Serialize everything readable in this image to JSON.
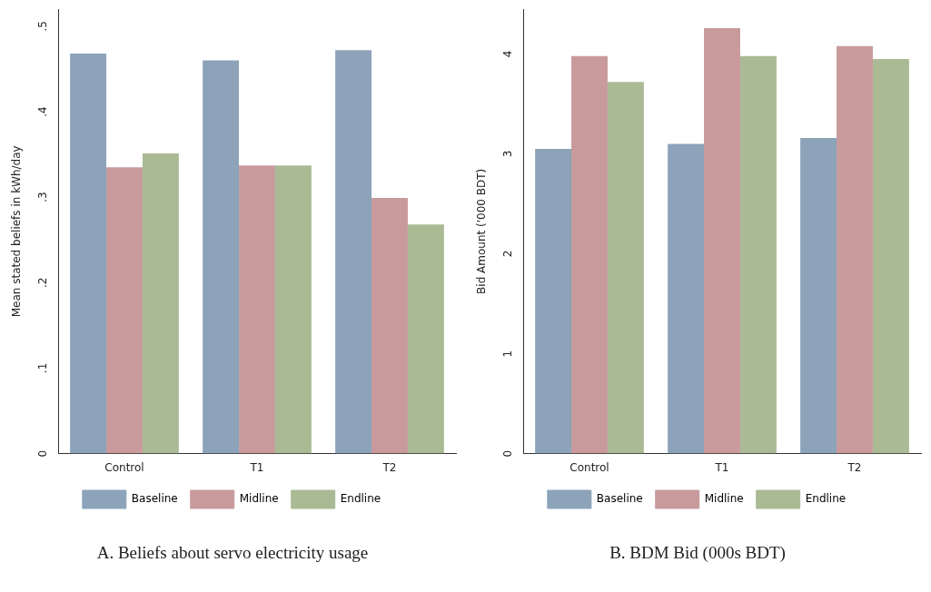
{
  "chart_data": [
    {
      "type": "bar",
      "title": "A. Beliefs about servo electricity usage",
      "ylabel": "Mean stated beliefs in kWh/day",
      "categories": [
        "Control",
        "T1",
        "T2"
      ],
      "series": [
        {
          "name": "Baseline",
          "color": "#8ca3ba",
          "values": [
            0.468,
            0.46,
            0.472
          ]
        },
        {
          "name": "Midline",
          "color": "#c89a9c",
          "values": [
            0.335,
            0.337,
            0.299
          ]
        },
        {
          "name": "Endline",
          "color": "#a9ba94",
          "values": [
            0.351,
            0.337,
            0.268
          ]
        }
      ],
      "ylim": [
        0,
        0.52
      ],
      "yticks": [
        {
          "value": 0,
          "label": "0"
        },
        {
          "value": 0.1,
          "label": ".1"
        },
        {
          "value": 0.2,
          "label": ".2"
        },
        {
          "value": 0.3,
          "label": ".3"
        },
        {
          "value": 0.4,
          "label": ".4"
        },
        {
          "value": 0.5,
          "label": ".5"
        }
      ],
      "grid": false,
      "legend": "bottom"
    },
    {
      "type": "bar",
      "title": "B. BDM Bid (000s BDT)",
      "ylabel": "Bid Amount ('000 BDT)",
      "categories": [
        "Control",
        "T1",
        "T2"
      ],
      "series": [
        {
          "name": "Baseline",
          "color": "#8ca3ba",
          "values": [
            3.05,
            3.1,
            3.16
          ]
        },
        {
          "name": "Midline",
          "color": "#c89a9c",
          "values": [
            3.98,
            4.26,
            4.08
          ]
        },
        {
          "name": "Endline",
          "color": "#a9ba94",
          "values": [
            3.72,
            3.98,
            3.95
          ]
        }
      ],
      "ylim": [
        0,
        4.45
      ],
      "yticks": [
        0,
        1,
        2,
        3,
        4
      ],
      "grid": false,
      "legend": "bottom"
    }
  ]
}
